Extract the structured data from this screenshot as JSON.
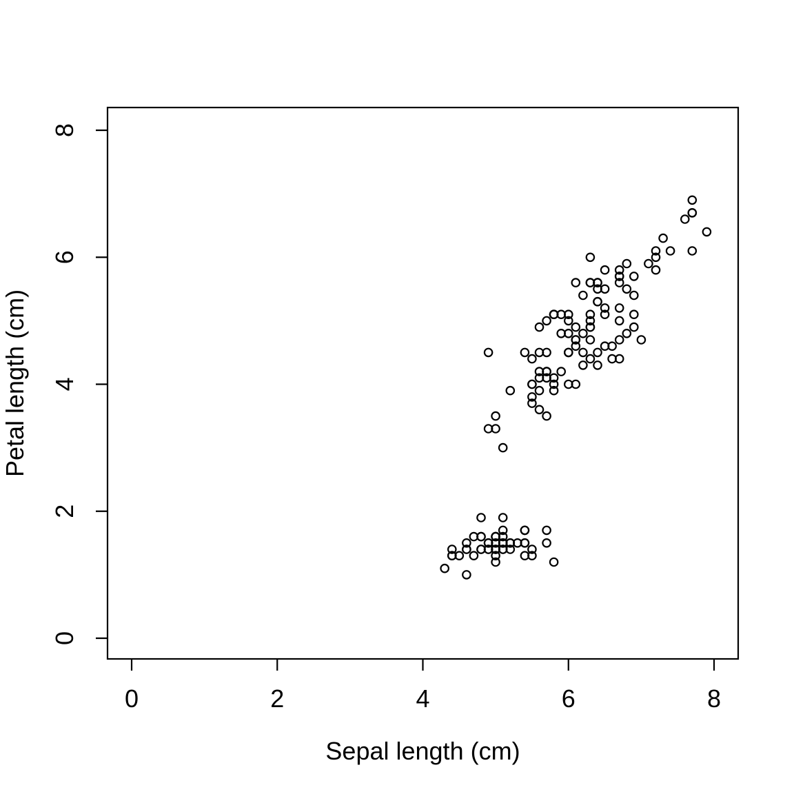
{
  "figure": {
    "background_color": "#ffffff",
    "foreground_color": "#000000"
  },
  "chart_data": {
    "type": "scatter",
    "title": "",
    "xlabel": "Sepal length (cm)",
    "ylabel": "Petal length (cm)",
    "xlim": [
      -0.32,
      8.32
    ],
    "ylim": [
      -0.32,
      8.32
    ],
    "xticks": [
      0,
      2,
      4,
      6,
      8
    ],
    "yticks": [
      0,
      2,
      4,
      6,
      8
    ],
    "grid": false,
    "legend": "none",
    "marker": "open-circle",
    "marker_color": "#000000",
    "points": [
      [
        5.1,
        1.4
      ],
      [
        4.9,
        1.4
      ],
      [
        4.7,
        1.3
      ],
      [
        4.6,
        1.5
      ],
      [
        5.0,
        1.4
      ],
      [
        5.4,
        1.7
      ],
      [
        4.6,
        1.4
      ],
      [
        5.0,
        1.5
      ],
      [
        4.4,
        1.4
      ],
      [
        4.9,
        1.5
      ],
      [
        5.4,
        1.5
      ],
      [
        4.8,
        1.6
      ],
      [
        4.8,
        1.4
      ],
      [
        4.3,
        1.1
      ],
      [
        5.8,
        1.2
      ],
      [
        5.7,
        1.5
      ],
      [
        5.4,
        1.3
      ],
      [
        5.1,
        1.4
      ],
      [
        5.7,
        1.7
      ],
      [
        5.1,
        1.5
      ],
      [
        5.4,
        1.7
      ],
      [
        5.1,
        1.5
      ],
      [
        4.6,
        1.0
      ],
      [
        5.1,
        1.7
      ],
      [
        4.8,
        1.9
      ],
      [
        5.0,
        1.6
      ],
      [
        5.0,
        1.6
      ],
      [
        5.2,
        1.5
      ],
      [
        5.2,
        1.4
      ],
      [
        4.7,
        1.6
      ],
      [
        4.8,
        1.6
      ],
      [
        5.4,
        1.5
      ],
      [
        5.2,
        1.5
      ],
      [
        5.5,
        1.4
      ],
      [
        4.9,
        1.5
      ],
      [
        5.0,
        1.2
      ],
      [
        5.5,
        1.3
      ],
      [
        4.9,
        1.4
      ],
      [
        4.4,
        1.3
      ],
      [
        5.1,
        1.5
      ],
      [
        5.0,
        1.3
      ],
      [
        4.5,
        1.3
      ],
      [
        4.4,
        1.3
      ],
      [
        5.0,
        1.6
      ],
      [
        5.1,
        1.9
      ],
      [
        4.8,
        1.4
      ],
      [
        5.1,
        1.6
      ],
      [
        4.6,
        1.4
      ],
      [
        5.3,
        1.5
      ],
      [
        5.0,
        1.4
      ],
      [
        7.0,
        4.7
      ],
      [
        6.4,
        4.5
      ],
      [
        6.9,
        4.9
      ],
      [
        5.5,
        4.0
      ],
      [
        6.5,
        4.6
      ],
      [
        5.7,
        4.5
      ],
      [
        6.3,
        4.7
      ],
      [
        4.9,
        3.3
      ],
      [
        6.6,
        4.6
      ],
      [
        5.2,
        3.9
      ],
      [
        5.0,
        3.5
      ],
      [
        5.9,
        4.2
      ],
      [
        6.0,
        4.0
      ],
      [
        6.1,
        4.7
      ],
      [
        5.6,
        3.6
      ],
      [
        6.7,
        4.4
      ],
      [
        5.6,
        4.5
      ],
      [
        5.8,
        4.1
      ],
      [
        6.2,
        4.5
      ],
      [
        5.6,
        3.9
      ],
      [
        5.9,
        4.8
      ],
      [
        6.1,
        4.0
      ],
      [
        6.3,
        4.9
      ],
      [
        6.1,
        4.7
      ],
      [
        6.4,
        4.3
      ],
      [
        6.6,
        4.4
      ],
      [
        6.8,
        4.8
      ],
      [
        6.7,
        5.0
      ],
      [
        6.0,
        4.5
      ],
      [
        5.7,
        3.5
      ],
      [
        5.5,
        3.8
      ],
      [
        5.5,
        3.7
      ],
      [
        5.8,
        3.9
      ],
      [
        6.0,
        5.1
      ],
      [
        5.4,
        4.5
      ],
      [
        6.0,
        4.5
      ],
      [
        6.7,
        4.7
      ],
      [
        6.3,
        4.4
      ],
      [
        5.6,
        4.1
      ],
      [
        5.5,
        4.0
      ],
      [
        5.5,
        4.4
      ],
      [
        6.1,
        4.6
      ],
      [
        5.8,
        4.0
      ],
      [
        5.0,
        3.3
      ],
      [
        5.6,
        4.2
      ],
      [
        5.7,
        4.2
      ],
      [
        5.7,
        4.2
      ],
      [
        6.2,
        4.3
      ],
      [
        5.1,
        3.0
      ],
      [
        5.7,
        4.1
      ],
      [
        6.3,
        6.0
      ],
      [
        5.8,
        5.1
      ],
      [
        7.1,
        5.9
      ],
      [
        6.3,
        5.6
      ],
      [
        6.5,
        5.8
      ],
      [
        7.6,
        6.6
      ],
      [
        4.9,
        4.5
      ],
      [
        7.3,
        6.3
      ],
      [
        6.7,
        5.8
      ],
      [
        7.2,
        6.1
      ],
      [
        6.5,
        5.1
      ],
      [
        6.4,
        5.3
      ],
      [
        6.8,
        5.5
      ],
      [
        5.7,
        5.0
      ],
      [
        5.8,
        5.1
      ],
      [
        6.4,
        5.3
      ],
      [
        6.5,
        5.5
      ],
      [
        7.7,
        6.7
      ],
      [
        7.7,
        6.9
      ],
      [
        6.0,
        5.0
      ],
      [
        6.9,
        5.7
      ],
      [
        5.6,
        4.9
      ],
      [
        7.7,
        6.7
      ],
      [
        6.3,
        4.9
      ],
      [
        6.7,
        5.7
      ],
      [
        7.2,
        6.0
      ],
      [
        6.2,
        4.8
      ],
      [
        6.1,
        4.9
      ],
      [
        6.4,
        5.6
      ],
      [
        7.2,
        5.8
      ],
      [
        7.4,
        6.1
      ],
      [
        7.9,
        6.4
      ],
      [
        6.4,
        5.6
      ],
      [
        6.3,
        5.1
      ],
      [
        6.1,
        5.6
      ],
      [
        7.7,
        6.1
      ],
      [
        6.3,
        5.6
      ],
      [
        6.4,
        5.5
      ],
      [
        6.0,
        4.8
      ],
      [
        6.9,
        5.4
      ],
      [
        6.7,
        5.6
      ],
      [
        6.9,
        5.1
      ],
      [
        5.8,
        5.1
      ],
      [
        6.8,
        5.9
      ],
      [
        6.7,
        5.7
      ],
      [
        6.7,
        5.2
      ],
      [
        6.3,
        5.0
      ],
      [
        6.5,
        5.2
      ],
      [
        6.2,
        5.4
      ],
      [
        5.9,
        5.1
      ]
    ]
  }
}
